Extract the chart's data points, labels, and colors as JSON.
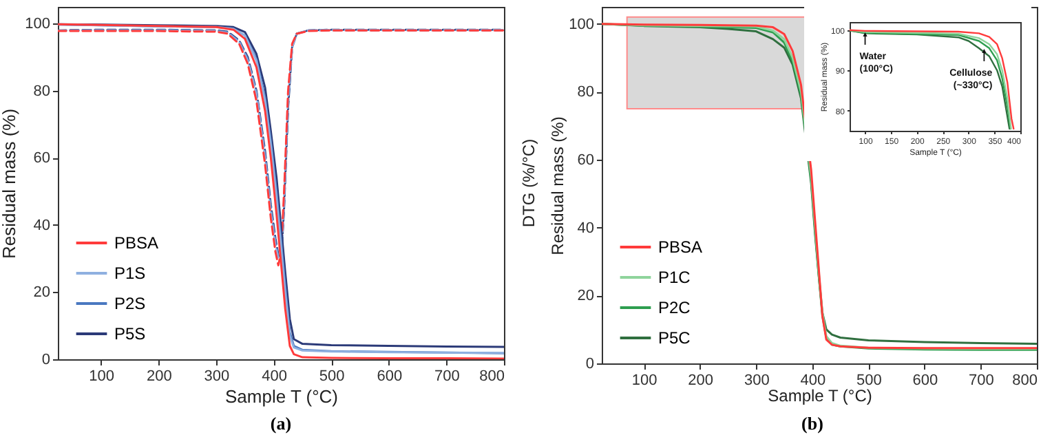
{
  "chart_data": [
    {
      "type": "line",
      "xlabel": "Sample T (°C)",
      "ylabel": "Residual mass (%)",
      "y2label": "DTG (%/°C)",
      "annotations": [
        "(a)"
      ],
      "xlim": [
        25,
        800
      ],
      "xticks": [
        100,
        200,
        300,
        400,
        500,
        600,
        700,
        800
      ],
      "ylim": [
        0,
        105
      ],
      "yticks": [
        0,
        20,
        40,
        60,
        80,
        100
      ],
      "grid": false,
      "legend": "bottom left",
      "series": [
        {
          "name": "PBSA",
          "color": "#ff3b3b",
          "x": [
            25,
            100,
            200,
            300,
            330,
            350,
            370,
            385,
            395,
            405,
            412,
            420,
            428,
            435,
            450,
            500,
            600,
            700,
            800
          ],
          "values": [
            99.8,
            99.6,
            99.3,
            99,
            98.2,
            95.5,
            87,
            74,
            60,
            43,
            30,
            15,
            4,
            1.5,
            0.6,
            0.4,
            0.3,
            0.3,
            0.2
          ]
        },
        {
          "name": "P1S",
          "color": "#8fb0e0",
          "x": [
            25,
            100,
            200,
            300,
            330,
            350,
            370,
            385,
            395,
            405,
            412,
            420,
            428,
            435,
            450,
            500,
            600,
            700,
            800
          ],
          "values": [
            99.8,
            99.5,
            99.2,
            99,
            98.5,
            96.5,
            89,
            77,
            64,
            48,
            35,
            20,
            7,
            3.5,
            2.6,
            2.3,
            2.1,
            2,
            1.9
          ]
        },
        {
          "name": "P2S",
          "color": "#4a78c0",
          "x": [
            25,
            100,
            200,
            300,
            330,
            350,
            370,
            385,
            395,
            405,
            412,
            420,
            428,
            435,
            450,
            500,
            600,
            700,
            800
          ],
          "values": [
            99.7,
            99.5,
            99.2,
            99,
            98.5,
            96.5,
            89.5,
            78,
            65,
            50,
            37,
            22,
            8,
            4,
            2.8,
            2.4,
            2.2,
            2,
            1.8
          ]
        },
        {
          "name": "P5S",
          "color": "#2b3a78",
          "x": [
            25,
            100,
            200,
            300,
            330,
            350,
            370,
            385,
            395,
            405,
            412,
            420,
            428,
            435,
            450,
            500,
            600,
            700,
            800
          ],
          "values": [
            99.8,
            99.7,
            99.5,
            99.3,
            99,
            97.5,
            91,
            81,
            68,
            54,
            41,
            26,
            12,
            6,
            4.6,
            4.2,
            4,
            3.8,
            3.7
          ]
        },
        {
          "color": "#ff3b3b",
          "line_style": "dashed",
          "x": [
            25,
            100,
            200,
            300,
            320,
            340,
            355,
            370,
            385,
            395,
            403,
            408,
            413,
            418,
            425,
            432,
            440,
            460,
            500,
            600,
            800
          ],
          "values": [
            97.8,
            97.8,
            97.8,
            97.6,
            97,
            94,
            88,
            77,
            58,
            42,
            32,
            28,
            32,
            50,
            80,
            94,
            97,
            97.8,
            98,
            98,
            98
          ]
        },
        {
          "color": "#8fb0e0",
          "line_style": "dashed",
          "x": [
            25,
            100,
            200,
            300,
            320,
            340,
            355,
            370,
            385,
            395,
            403,
            408,
            413,
            418,
            425,
            432,
            440,
            460,
            500,
            600,
            800
          ],
          "values": [
            97.9,
            98,
            98,
            97.8,
            97.3,
            94.5,
            89,
            79,
            60,
            44,
            34,
            30,
            31,
            47,
            78,
            93,
            97,
            98,
            98.1,
            98.1,
            98.1
          ]
        },
        {
          "color": "#4a78c0",
          "line_style": "dashed",
          "x": [
            25,
            100,
            200,
            300,
            320,
            340,
            355,
            370,
            385,
            395,
            403,
            408,
            413,
            418,
            425,
            432,
            440,
            460,
            500,
            600,
            800
          ],
          "values": [
            97.9,
            98.1,
            98.1,
            97.9,
            97.4,
            94.8,
            89.5,
            79.5,
            61,
            45,
            35,
            30.5,
            30.5,
            46,
            76,
            93,
            97,
            98,
            98.1,
            98.1,
            98.1
          ]
        },
        {
          "color": "#2b3a78",
          "line_style": "dashed",
          "x": [
            25,
            100,
            200,
            300,
            320,
            340,
            355,
            370,
            385,
            395,
            403,
            408,
            413,
            418,
            425,
            432,
            440,
            460,
            500,
            600,
            800
          ],
          "values": [
            98,
            98.2,
            98.2,
            98,
            97.6,
            95,
            90,
            80,
            62,
            46,
            36,
            31,
            30,
            45,
            75,
            93,
            97,
            98,
            98.2,
            98.2,
            98.2
          ]
        }
      ]
    },
    {
      "type": "line",
      "xlabel": "Sample T (°C)",
      "ylabel": "Residual mass (%)",
      "annotations": [
        "(b)"
      ],
      "xlim": [
        25,
        800
      ],
      "xticks": [
        100,
        200,
        300,
        400,
        500,
        600,
        700,
        800
      ],
      "ylim": [
        0,
        105
      ],
      "yticks": [
        0,
        20,
        40,
        60,
        80,
        100
      ],
      "grid": false,
      "legend": "bottom left",
      "series": [
        {
          "name": "PBSA",
          "color": "#ff3b3b",
          "x": [
            25,
            100,
            200,
            250,
            300,
            330,
            350,
            365,
            380,
            398,
            405,
            412,
            418,
            425,
            435,
            450,
            500,
            600,
            700,
            800
          ],
          "values": [
            100,
            99.8,
            99.7,
            99.6,
            99.5,
            99,
            97,
            92,
            82,
            57,
            42,
            27,
            14,
            7,
            5.5,
            5,
            4.6,
            4.5,
            4.5,
            4.5
          ]
        },
        {
          "name": "P1C",
          "color": "#8fd49c",
          "x": [
            25,
            100,
            200,
            250,
            300,
            330,
            350,
            365,
            380,
            398,
            405,
            412,
            418,
            425,
            435,
            450,
            500,
            600,
            700,
            800
          ],
          "values": [
            100,
            99.6,
            99.4,
            99.3,
            99.2,
            98,
            95.5,
            90,
            80,
            55,
            40,
            26,
            15,
            8,
            6,
            5.2,
            4.6,
            4.4,
            4.3,
            4.3
          ]
        },
        {
          "name": "P2C",
          "color": "#2e9e4f",
          "x": [
            25,
            100,
            200,
            250,
            300,
            330,
            350,
            365,
            380,
            398,
            405,
            412,
            418,
            425,
            435,
            450,
            500,
            600,
            700,
            800
          ],
          "values": [
            100,
            99.5,
            99.2,
            99,
            98.8,
            97.5,
            94.5,
            89,
            79,
            54,
            39,
            25,
            14,
            7.5,
            5.5,
            5,
            4.4,
            4.1,
            4,
            4
          ]
        },
        {
          "name": "P5C",
          "color": "#2f6f3f",
          "x": [
            25,
            100,
            200,
            250,
            300,
            330,
            350,
            365,
            380,
            398,
            405,
            412,
            418,
            425,
            435,
            450,
            500,
            600,
            700,
            800
          ],
          "values": [
            100,
            99.4,
            99,
            98.5,
            97.8,
            95.5,
            93,
            88,
            78,
            53,
            38,
            25,
            15,
            10,
            8.5,
            7.6,
            6.8,
            6.3,
            6,
            5.8
          ]
        }
      ]
    },
    {
      "type": "line",
      "xlabel": "Sample T (°C)",
      "ylabel": "Residual mass (%)",
      "annotations": [
        {
          "text": "Water (100°C)",
          "x": 100,
          "y": 99.6
        },
        {
          "text": "Cellulose (~330°C)",
          "x": 330,
          "y": 95.5
        }
      ],
      "xlim": [
        70,
        400
      ],
      "xticks": [
        100,
        150,
        200,
        250,
        300,
        350,
        400
      ],
      "ylim": [
        75,
        102
      ],
      "yticks": [
        80,
        90,
        100
      ],
      "grid": false,
      "series": [
        {
          "color": "#ff3b3b",
          "x": [
            70,
            100,
            200,
            280,
            320,
            340,
            355,
            365,
            375,
            383,
            387
          ],
          "values": [
            100,
            99.8,
            99.7,
            99.6,
            99.2,
            98.3,
            96.5,
            93,
            87,
            78,
            75.5
          ]
        },
        {
          "color": "#8fd49c",
          "x": [
            70,
            100,
            200,
            280,
            320,
            340,
            355,
            365,
            375,
            382
          ],
          "values": [
            100,
            99.5,
            99.3,
            99.1,
            98,
            96.5,
            94,
            90,
            83,
            75.5
          ]
        },
        {
          "color": "#2e9e4f",
          "x": [
            70,
            100,
            200,
            280,
            320,
            340,
            355,
            365,
            375,
            381
          ],
          "values": [
            99.9,
            99.3,
            99,
            98.8,
            97.3,
            95.5,
            92.5,
            88,
            81,
            75.5
          ]
        },
        {
          "color": "#2f6f3f",
          "x": [
            70,
            100,
            200,
            280,
            300,
            320,
            340,
            355,
            365,
            373,
            379
          ],
          "values": [
            99.9,
            99.2,
            98.9,
            98.2,
            97.3,
            95.5,
            93.5,
            90,
            86,
            80,
            75.5
          ]
        }
      ]
    }
  ]
}
